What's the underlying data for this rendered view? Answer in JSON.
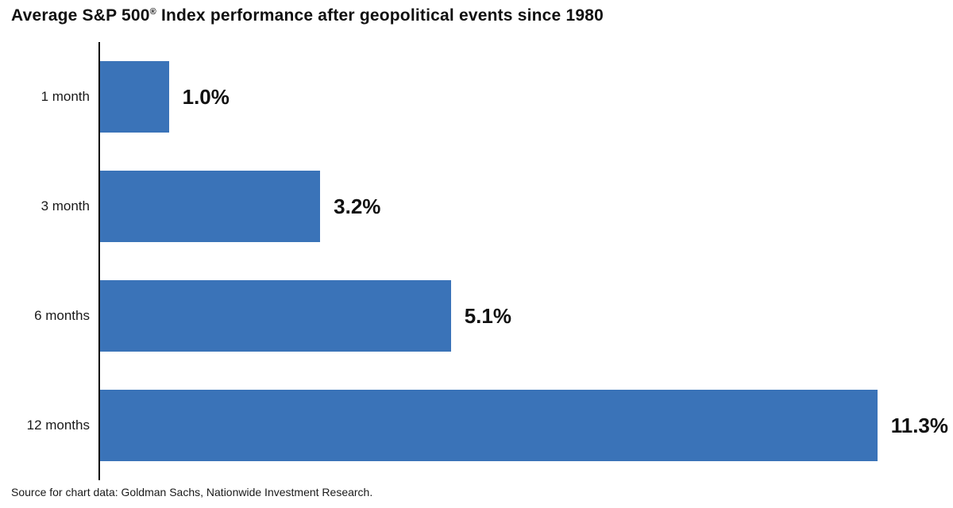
{
  "header": {
    "title_prefix": "Average S&P 500",
    "title_reg": "®",
    "title_suffix": " Index performance after geopolitical events since 1980"
  },
  "footer": {
    "source": "Source for chart data: Goldman Sachs, Nationwide Investment Research."
  },
  "chart_data": {
    "type": "bar",
    "orientation": "horizontal",
    "title": "Average S&P 500® Index performance after geopolitical events since 1980",
    "categories": [
      "1 month",
      "3 month",
      "6 months",
      "12 months"
    ],
    "values": [
      1.0,
      3.2,
      5.1,
      11.3
    ],
    "value_labels": [
      "1.0%",
      "3.2%",
      "5.1%",
      "11.3%"
    ],
    "xlabel": "",
    "ylabel": "",
    "xlim": [
      0,
      12.4
    ],
    "grid": false,
    "legend": false,
    "bar_color": "#3a73b8",
    "axis_color": "#000000",
    "source": "Source for chart data: Goldman Sachs, Nationwide Investment Research."
  }
}
